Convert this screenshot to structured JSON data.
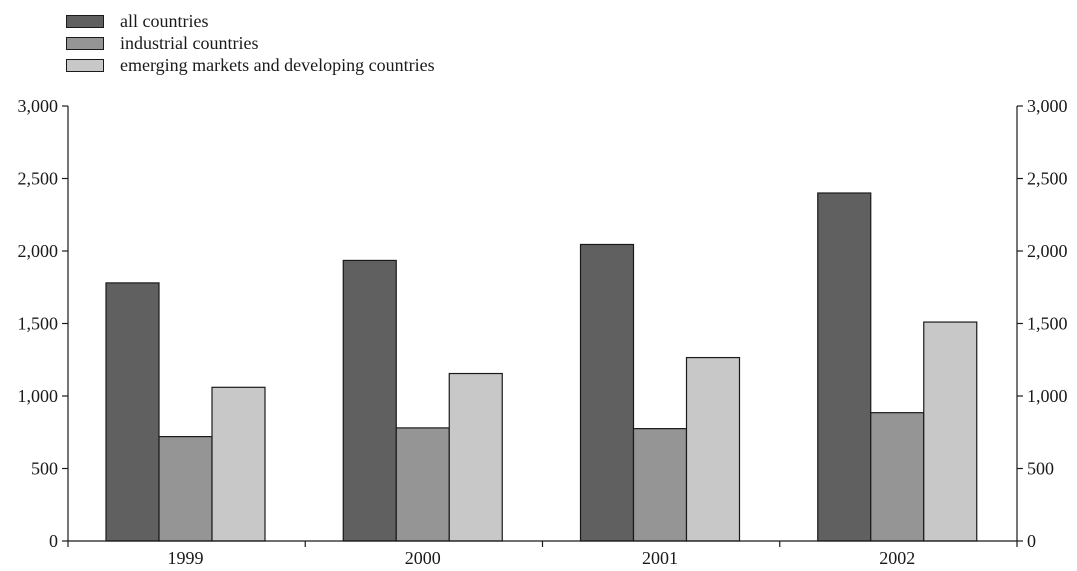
{
  "chart_data": {
    "type": "bar",
    "title": "",
    "xlabel": "",
    "ylabel": "",
    "categories": [
      "1999",
      "2000",
      "2001",
      "2002"
    ],
    "series": [
      {
        "name": "all countries",
        "color": "#606060",
        "values": [
          1780,
          1935,
          2045,
          2400
        ]
      },
      {
        "name": "industrial countries",
        "color": "#959595",
        "values": [
          720,
          780,
          775,
          885
        ]
      },
      {
        "name": "emerging markets and developing countries",
        "color": "#c8c8c8",
        "values": [
          1060,
          1155,
          1265,
          1510
        ]
      }
    ],
    "ylim": [
      0,
      3000
    ],
    "yticks": [
      "0",
      "500",
      "1,000",
      "1,500",
      "2,000",
      "2,500",
      "3,000"
    ],
    "ytick_values": [
      0,
      500,
      1000,
      1500,
      2000,
      2500,
      3000
    ],
    "right_axis": true,
    "grid": false,
    "legend_position": "top-left"
  }
}
